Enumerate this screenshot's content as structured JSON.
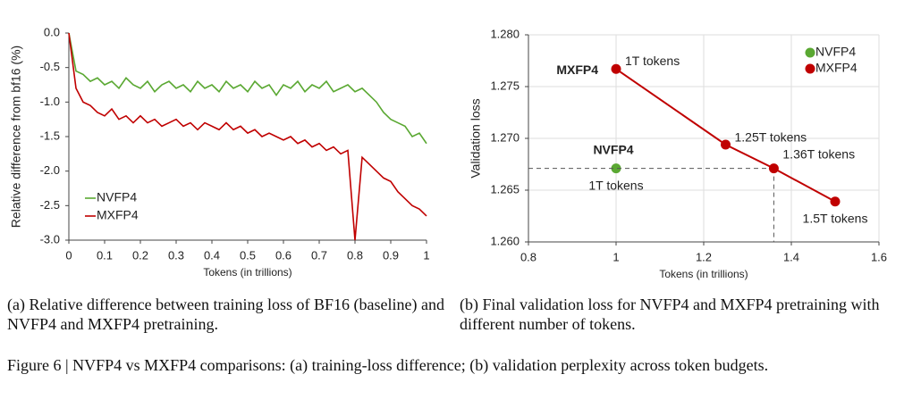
{
  "chart_data": [
    {
      "type": "line",
      "caption": "(a) Relative difference between training loss of BF16 (baseline) and NVFP4 and MXFP4 pretraining.",
      "xlabel": "Tokens (in trillions)",
      "ylabel": "Relative difference from bf16 (%)",
      "x": [
        0,
        0.02,
        0.04,
        0.06,
        0.08,
        0.1,
        0.12,
        0.14,
        0.16,
        0.18,
        0.2,
        0.22,
        0.24,
        0.26,
        0.28,
        0.3,
        0.32,
        0.34,
        0.36,
        0.38,
        0.4,
        0.42,
        0.44,
        0.46,
        0.48,
        0.5,
        0.52,
        0.54,
        0.56,
        0.58,
        0.6,
        0.62,
        0.64,
        0.66,
        0.68,
        0.7,
        0.72,
        0.74,
        0.76,
        0.78,
        0.8,
        0.82,
        0.84,
        0.86,
        0.88,
        0.9,
        0.92,
        0.94,
        0.96,
        0.98,
        1
      ],
      "series": [
        {
          "name": "NVFP4",
          "color": "#5aa832",
          "values": [
            0,
            -0.55,
            -0.6,
            -0.7,
            -0.65,
            -0.75,
            -0.7,
            -0.8,
            -0.65,
            -0.75,
            -0.8,
            -0.7,
            -0.85,
            -0.75,
            -0.7,
            -0.8,
            -0.75,
            -0.85,
            -0.7,
            -0.8,
            -0.75,
            -0.85,
            -0.7,
            -0.8,
            -0.75,
            -0.85,
            -0.7,
            -0.8,
            -0.75,
            -0.9,
            -0.75,
            -0.8,
            -0.7,
            -0.85,
            -0.75,
            -0.8,
            -0.7,
            -0.85,
            -0.8,
            -0.75,
            -0.85,
            -0.8,
            -0.9,
            -1.0,
            -1.15,
            -1.25,
            -1.3,
            -1.35,
            -1.5,
            -1.45,
            -1.6
          ]
        },
        {
          "name": "MXFP4",
          "color": "#c00000",
          "values": [
            0,
            -0.8,
            -1.0,
            -1.05,
            -1.15,
            -1.2,
            -1.1,
            -1.25,
            -1.2,
            -1.3,
            -1.2,
            -1.3,
            -1.25,
            -1.35,
            -1.3,
            -1.25,
            -1.35,
            -1.3,
            -1.4,
            -1.3,
            -1.35,
            -1.4,
            -1.3,
            -1.4,
            -1.35,
            -1.45,
            -1.4,
            -1.5,
            -1.45,
            -1.5,
            -1.55,
            -1.5,
            -1.6,
            -1.55,
            -1.65,
            -1.6,
            -1.7,
            -1.65,
            -1.75,
            -1.7,
            -3.0,
            -1.8,
            -1.9,
            -2.0,
            -2.1,
            -2.15,
            -2.3,
            -2.4,
            -2.5,
            -2.55,
            -2.65
          ]
        }
      ],
      "xlim": [
        0,
        1
      ],
      "xticks": [
        0,
        0.1,
        0.2,
        0.3,
        0.4,
        0.5,
        0.6,
        0.7,
        0.8,
        0.9,
        1
      ],
      "ylim": [
        -3,
        0
      ],
      "yticks": [
        {
          "value": 0,
          "label": "0.0"
        },
        -0.5,
        {
          "value": -1,
          "label": "-1.0"
        },
        -1.5,
        {
          "value": -2,
          "label": "-2.0"
        },
        -2.5,
        {
          "value": -3,
          "label": "-3.0"
        }
      ],
      "grid": false,
      "legend": "lower-left"
    },
    {
      "type": "scatter",
      "caption": "(b) Final validation loss for NVFP4 and MXFP4 pretraining with different number of tokens.",
      "xlabel": "Tokens (in trillions)",
      "ylabel": "Validation loss",
      "series": [
        {
          "name": "NVFP4",
          "color": "#5aa832",
          "x": [
            1
          ],
          "y": [
            1.2671
          ],
          "point_labels": [
            "1T tokens"
          ]
        },
        {
          "name": "MXFP4",
          "color": "#c00000",
          "x": [
            1,
            1.25,
            1.36,
            1.5
          ],
          "y": [
            1.2767,
            1.2694,
            1.2671,
            1.2639
          ],
          "point_labels": [
            "1T tokens",
            "1.25T tokens",
            "1.36T tokens",
            "1.5T tokens"
          ],
          "connected": true
        }
      ],
      "xlim": [
        0.8,
        1.6
      ],
      "xticks": [
        0.8,
        1,
        1.2,
        1.4,
        1.6
      ],
      "ylim": [
        1.26,
        1.28
      ],
      "yticks": [
        {
          "value": 1.26,
          "label": "1.260"
        },
        1.265,
        {
          "value": 1.27,
          "label": "1.270"
        },
        1.275,
        {
          "value": 1.28,
          "label": "1.280"
        }
      ],
      "grid": true,
      "legend": "upper-right"
    }
  ],
  "figure_caption": "Figure 6 | NVFP4 vs MXFP4 comparisons: (a) training-loss difference; (b) validation perplexity across token budgets."
}
